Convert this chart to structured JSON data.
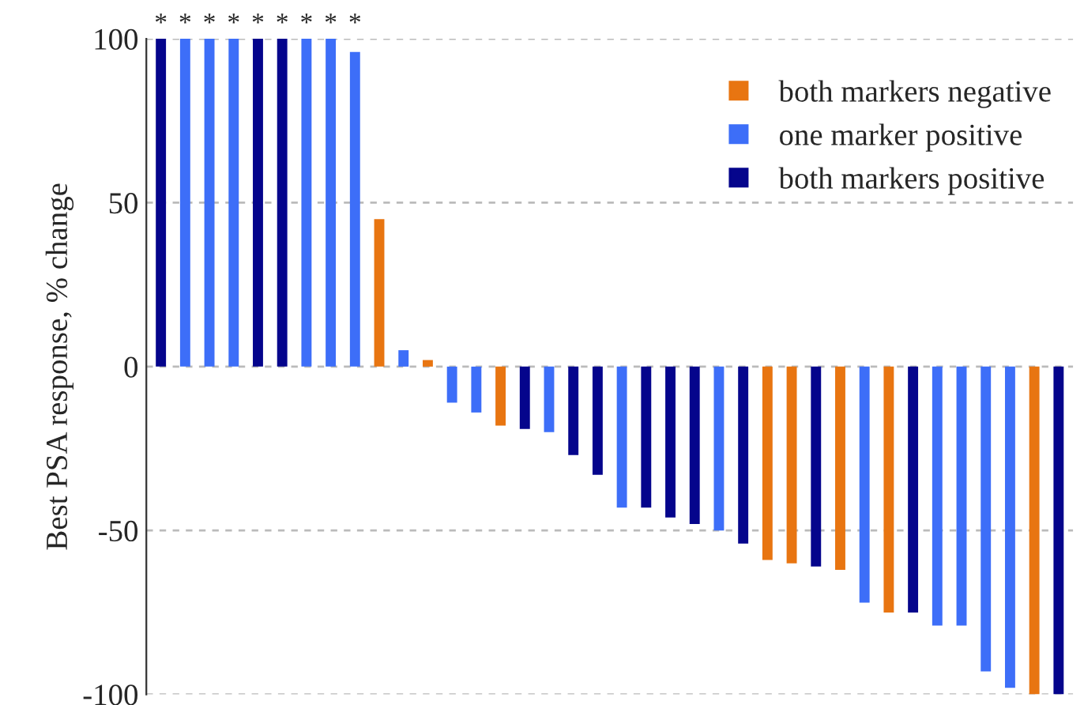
{
  "chart_data": {
    "type": "bar",
    "ylabel": "Best PSA response, % change",
    "categories": [
      null,
      null,
      null,
      null,
      null,
      null,
      null,
      null,
      null,
      null,
      null,
      null,
      null,
      null,
      null,
      null,
      null,
      null,
      null,
      null,
      null,
      null,
      null,
      null,
      null,
      null,
      null,
      null,
      null,
      null,
      null,
      null,
      null,
      null,
      null,
      null,
      null,
      null
    ],
    "series": [
      {
        "name": "both markers negative",
        "color": "#e87511",
        "values": [
          null,
          null,
          null,
          null,
          null,
          null,
          null,
          null,
          null,
          45,
          null,
          2,
          null,
          null,
          -18,
          null,
          null,
          null,
          null,
          null,
          null,
          null,
          null,
          null,
          null,
          -59,
          -60,
          null,
          -62,
          null,
          -75,
          null,
          null,
          null,
          null,
          null,
          -100,
          null
        ]
      },
      {
        "name": "one marker positive",
        "color": "#3d6ef8",
        "values": [
          null,
          100,
          100,
          100,
          null,
          null,
          100,
          100,
          96,
          null,
          5,
          null,
          -11,
          -14,
          null,
          null,
          -20,
          null,
          null,
          -43,
          null,
          null,
          null,
          -50,
          null,
          null,
          null,
          null,
          null,
          -72,
          null,
          null,
          -79,
          -79,
          -93,
          -98,
          null,
          null
        ]
      },
      {
        "name": "both markers positive",
        "color": "#05058c",
        "values": [
          100,
          null,
          null,
          null,
          100,
          100,
          null,
          null,
          null,
          null,
          null,
          null,
          null,
          null,
          null,
          -19,
          null,
          -27,
          -33,
          null,
          -43,
          -46,
          -48,
          null,
          -54,
          null,
          null,
          -61,
          null,
          null,
          null,
          -75,
          null,
          null,
          null,
          null,
          null,
          -100
        ]
      }
    ],
    "annotations": [
      "*",
      "*",
      "*",
      "*",
      "*",
      "*",
      "*",
      "*",
      "*"
    ],
    "ylim": [
      -100,
      100
    ],
    "yticks": [
      -100,
      -50,
      0,
      50,
      100
    ],
    "grid": "y",
    "legend": "top right",
    "tick_labels": "y",
    "marker": "square"
  }
}
